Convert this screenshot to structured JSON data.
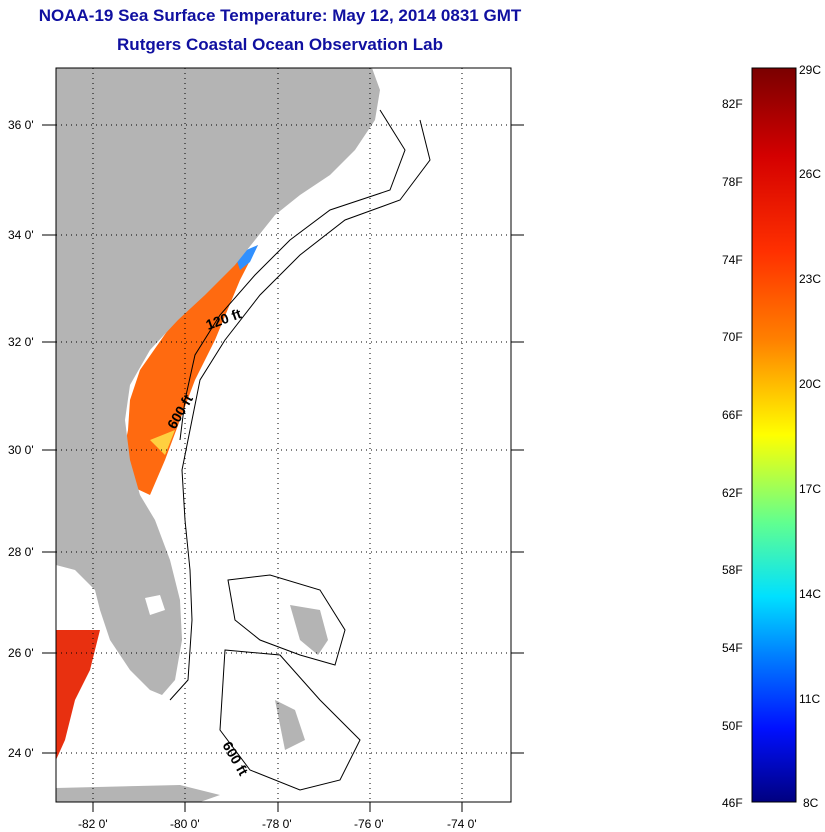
{
  "title_line1": "NOAA-19 Sea Surface Temperature:  May 12, 2014 0831 GMT",
  "title_line2": "Rutgers Coastal Ocean Observation Lab",
  "map": {
    "lat_ticks": [
      "36 0'",
      "34 0'",
      "32 0'",
      "30 0'",
      "28 0'",
      "26 0'",
      "24 0'"
    ],
    "lon_ticks": [
      "-82 0'",
      "-80 0'",
      "-78 0'",
      "-76 0'",
      "-74 0'"
    ],
    "contour_labels": [
      "120 ft",
      "600 ft",
      "600 ft"
    ],
    "colors": {
      "land": "#b4b4b4",
      "water": "#ffffff"
    }
  },
  "colorbar": {
    "fahrenheit": [
      "82F",
      "78F",
      "74F",
      "70F",
      "66F",
      "62F",
      "58F",
      "54F",
      "50F",
      "46F"
    ],
    "celsius": [
      "29C",
      "26C",
      "23C",
      "20C",
      "17C",
      "14C",
      "11C",
      "8C"
    ]
  }
}
